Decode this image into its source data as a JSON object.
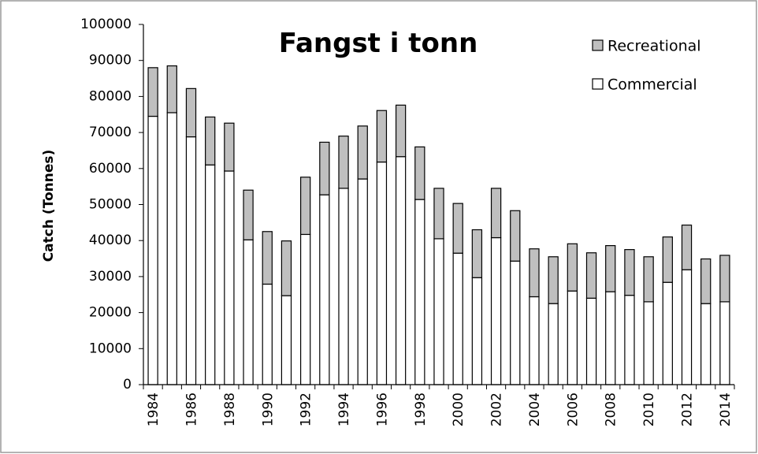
{
  "chart_data": {
    "type": "bar",
    "stacked": true,
    "title": "Fangst i tonn",
    "xlabel": "",
    "ylabel": "Catch (Tonnes)",
    "ylim": [
      0,
      100000
    ],
    "yticks": [
      0,
      10000,
      20000,
      30000,
      40000,
      50000,
      60000,
      70000,
      80000,
      90000,
      100000
    ],
    "categories": [
      1984,
      1985,
      1986,
      1987,
      1988,
      1989,
      1990,
      1991,
      1992,
      1993,
      1994,
      1995,
      1996,
      1997,
      1998,
      1999,
      2000,
      2001,
      2002,
      2003,
      2004,
      2005,
      2006,
      2007,
      2008,
      2009,
      2010,
      2011,
      2012,
      2013,
      2014
    ],
    "xtick_labels": [
      "1984",
      "1986",
      "1988",
      "1990",
      "1992",
      "1994",
      "1996",
      "1998",
      "2000",
      "2002",
      "2004",
      "2006",
      "2008",
      "2010",
      "2012",
      "2014"
    ],
    "grid": false,
    "legend_position": "top-right",
    "series": [
      {
        "name": "Commercial",
        "color": "#ffffff",
        "values": [
          74500,
          75500,
          68800,
          61000,
          59300,
          40200,
          27900,
          24700,
          41700,
          52700,
          54500,
          57100,
          61800,
          63300,
          51400,
          40500,
          36500,
          29700,
          40800,
          34300,
          24400,
          22500,
          26000,
          24000,
          25800,
          24800,
          23000,
          28400,
          31900,
          22500,
          23000
        ]
      },
      {
        "name": "Recreational",
        "color": "#bfbfbf",
        "values": [
          13500,
          13000,
          13400,
          13300,
          13300,
          13800,
          14600,
          15200,
          15900,
          14600,
          14500,
          14700,
          14300,
          14300,
          14600,
          14000,
          13800,
          13300,
          13700,
          14000,
          13300,
          13000,
          13100,
          12600,
          12800,
          12700,
          12500,
          12600,
          12400,
          12400,
          12900
        ]
      }
    ]
  }
}
